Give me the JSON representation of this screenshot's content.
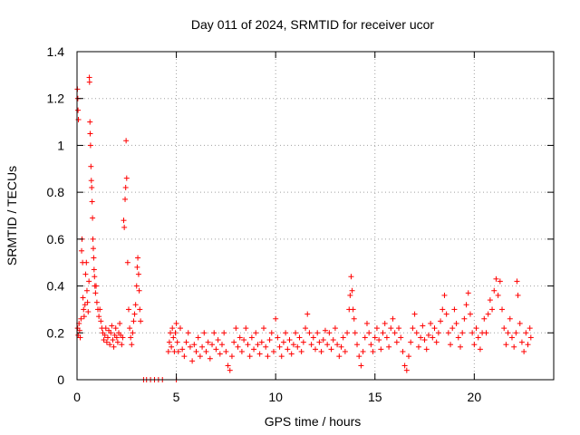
{
  "chart_data": {
    "type": "scatter",
    "title": "Day 011 of 2024, SRMTID for receiver ucor",
    "xlabel": "GPS time / hours",
    "ylabel": "SRMTID / TECUs",
    "xlim": [
      0,
      24
    ],
    "ylim": [
      0,
      1.4
    ],
    "xticks": [
      0,
      5,
      10,
      15,
      20
    ],
    "xtick_labels": [
      "0",
      "5",
      "10",
      "15",
      "20"
    ],
    "yticks": [
      0,
      0.2,
      0.4,
      0.6,
      0.8,
      1.0,
      1.2,
      1.4
    ],
    "ytick_labels": [
      "0",
      "0.2",
      "0.4",
      "0.6",
      "0.8",
      "1",
      "1.2",
      "1.4"
    ],
    "grid": true,
    "marker": "+",
    "color": "#ff0000",
    "series": [
      {
        "name": "SRMTID",
        "points": [
          [
            0.02,
            1.24
          ],
          [
            0.04,
            1.2
          ],
          [
            0.05,
            1.15
          ],
          [
            0.07,
            1.11
          ],
          [
            0.03,
            0.22
          ],
          [
            0.06,
            0.19
          ],
          [
            0.1,
            0.24
          ],
          [
            0.13,
            0.21
          ],
          [
            0.16,
            0.18
          ],
          [
            0.2,
            0.26
          ],
          [
            0.23,
            0.55
          ],
          [
            0.25,
            0.6
          ],
          [
            0.28,
            0.5
          ],
          [
            0.3,
            0.35
          ],
          [
            0.33,
            0.3
          ],
          [
            0.36,
            0.27
          ],
          [
            0.4,
            0.32
          ],
          [
            0.43,
            0.45
          ],
          [
            0.47,
            0.5
          ],
          [
            0.5,
            0.38
          ],
          [
            0.53,
            0.33
          ],
          [
            0.56,
            0.29
          ],
          [
            0.6,
            0.42
          ],
          [
            0.62,
            1.29
          ],
          [
            0.63,
            1.27
          ],
          [
            0.65,
            1.1
          ],
          [
            0.66,
            1.05
          ],
          [
            0.68,
            1.0
          ],
          [
            0.7,
            0.91
          ],
          [
            0.72,
            0.85
          ],
          [
            0.74,
            0.82
          ],
          [
            0.76,
            0.76
          ],
          [
            0.78,
            0.69
          ],
          [
            0.8,
            0.6
          ],
          [
            0.82,
            0.56
          ],
          [
            0.84,
            0.52
          ],
          [
            0.86,
            0.47
          ],
          [
            0.88,
            0.44
          ],
          [
            0.9,
            0.4
          ],
          [
            0.93,
            0.37
          ],
          [
            0.96,
            0.4
          ],
          [
            1.0,
            0.33
          ],
          [
            1.05,
            0.3
          ],
          [
            1.1,
            0.27
          ],
          [
            1.15,
            0.3
          ],
          [
            1.2,
            0.25
          ],
          [
            1.25,
            0.22
          ],
          [
            1.3,
            0.2
          ],
          [
            1.35,
            0.17
          ],
          [
            1.4,
            0.19
          ],
          [
            1.45,
            0.22
          ],
          [
            1.5,
            0.16
          ],
          [
            1.55,
            0.18
          ],
          [
            1.6,
            0.21
          ],
          [
            1.65,
            0.15
          ],
          [
            1.7,
            0.2
          ],
          [
            1.75,
            0.23
          ],
          [
            1.8,
            0.17
          ],
          [
            1.85,
            0.14
          ],
          [
            1.9,
            0.19
          ],
          [
            1.95,
            0.22
          ],
          [
            2.0,
            0.18
          ],
          [
            2.05,
            0.16
          ],
          [
            2.1,
            0.2
          ],
          [
            2.15,
            0.24
          ],
          [
            2.2,
            0.19
          ],
          [
            2.25,
            0.15
          ],
          [
            2.3,
            0.18
          ],
          [
            2.35,
            0.68
          ],
          [
            2.38,
            0.65
          ],
          [
            2.42,
            0.77
          ],
          [
            2.45,
            0.82
          ],
          [
            2.47,
            1.02
          ],
          [
            2.5,
            0.86
          ],
          [
            2.55,
            0.5
          ],
          [
            2.6,
            0.3
          ],
          [
            2.65,
            0.22
          ],
          [
            2.7,
            0.18
          ],
          [
            2.75,
            0.15
          ],
          [
            2.8,
            0.2
          ],
          [
            2.85,
            0.25
          ],
          [
            2.9,
            0.28
          ],
          [
            2.95,
            0.32
          ],
          [
            3.0,
            0.4
          ],
          [
            3.03,
            0.48
          ],
          [
            3.06,
            0.52
          ],
          [
            3.1,
            0.45
          ],
          [
            3.13,
            0.38
          ],
          [
            3.16,
            0.3
          ],
          [
            3.2,
            0.25
          ],
          [
            3.35,
            0.0
          ],
          [
            3.5,
            0.0
          ],
          [
            3.7,
            0.0
          ],
          [
            3.9,
            0.0
          ],
          [
            4.1,
            0.0
          ],
          [
            4.3,
            0.0
          ],
          [
            5.0,
            0.0
          ],
          [
            4.6,
            0.12
          ],
          [
            4.65,
            0.16
          ],
          [
            4.7,
            0.2
          ],
          [
            4.75,
            0.14
          ],
          [
            4.8,
            0.22
          ],
          [
            4.85,
            0.18
          ],
          [
            4.9,
            0.12
          ],
          [
            4.95,
            0.2
          ],
          [
            5.0,
            0.24
          ],
          [
            5.05,
            0.16
          ],
          [
            5.1,
            0.12
          ],
          [
            5.2,
            0.22
          ],
          [
            5.3,
            0.13
          ],
          [
            5.4,
            0.1
          ],
          [
            5.5,
            0.16
          ],
          [
            5.6,
            0.2
          ],
          [
            5.7,
            0.14
          ],
          [
            5.8,
            0.08
          ],
          [
            5.9,
            0.15
          ],
          [
            6.0,
            0.12
          ],
          [
            6.1,
            0.18
          ],
          [
            6.2,
            0.1
          ],
          [
            6.3,
            0.14
          ],
          [
            6.4,
            0.2
          ],
          [
            6.5,
            0.12
          ],
          [
            6.6,
            0.16
          ],
          [
            6.7,
            0.09
          ],
          [
            6.8,
            0.15
          ],
          [
            6.9,
            0.2
          ],
          [
            7.0,
            0.13
          ],
          [
            7.1,
            0.17
          ],
          [
            7.2,
            0.11
          ],
          [
            7.3,
            0.15
          ],
          [
            7.4,
            0.2
          ],
          [
            7.5,
            0.12
          ],
          [
            7.6,
            0.06
          ],
          [
            7.7,
            0.04
          ],
          [
            7.8,
            0.1
          ],
          [
            7.9,
            0.16
          ],
          [
            8.0,
            0.22
          ],
          [
            8.1,
            0.14
          ],
          [
            8.2,
            0.18
          ],
          [
            8.3,
            0.12
          ],
          [
            8.4,
            0.17
          ],
          [
            8.5,
            0.22
          ],
          [
            8.6,
            0.15
          ],
          [
            8.7,
            0.1
          ],
          [
            8.8,
            0.18
          ],
          [
            8.9,
            0.13
          ],
          [
            9.0,
            0.2
          ],
          [
            9.1,
            0.15
          ],
          [
            9.2,
            0.11
          ],
          [
            9.3,
            0.16
          ],
          [
            9.4,
            0.22
          ],
          [
            9.5,
            0.14
          ],
          [
            9.6,
            0.1
          ],
          [
            9.7,
            0.17
          ],
          [
            9.8,
            0.2
          ],
          [
            9.9,
            0.12
          ],
          [
            10.0,
            0.26
          ],
          [
            10.1,
            0.18
          ],
          [
            10.2,
            0.14
          ],
          [
            10.3,
            0.1
          ],
          [
            10.4,
            0.16
          ],
          [
            10.5,
            0.2
          ],
          [
            10.6,
            0.13
          ],
          [
            10.7,
            0.17
          ],
          [
            10.8,
            0.11
          ],
          [
            10.9,
            0.15
          ],
          [
            11.0,
            0.2
          ],
          [
            11.1,
            0.14
          ],
          [
            11.2,
            0.18
          ],
          [
            11.3,
            0.12
          ],
          [
            11.4,
            0.16
          ],
          [
            11.5,
            0.22
          ],
          [
            11.6,
            0.28
          ],
          [
            11.7,
            0.2
          ],
          [
            11.8,
            0.15
          ],
          [
            11.9,
            0.18
          ],
          [
            12.0,
            0.13
          ],
          [
            12.1,
            0.2
          ],
          [
            12.2,
            0.16
          ],
          [
            12.3,
            0.12
          ],
          [
            12.4,
            0.17
          ],
          [
            12.5,
            0.21
          ],
          [
            12.6,
            0.15
          ],
          [
            12.7,
            0.2
          ],
          [
            12.8,
            0.13
          ],
          [
            12.9,
            0.17
          ],
          [
            13.0,
            0.22
          ],
          [
            13.1,
            0.15
          ],
          [
            13.2,
            0.1
          ],
          [
            13.3,
            0.14
          ],
          [
            13.4,
            0.18
          ],
          [
            13.5,
            0.12
          ],
          [
            13.6,
            0.2
          ],
          [
            13.7,
            0.3
          ],
          [
            13.75,
            0.36
          ],
          [
            13.8,
            0.44
          ],
          [
            13.85,
            0.38
          ],
          [
            13.9,
            0.3
          ],
          [
            13.95,
            0.26
          ],
          [
            14.0,
            0.2
          ],
          [
            14.1,
            0.15
          ],
          [
            14.2,
            0.1
          ],
          [
            14.3,
            0.06
          ],
          [
            14.4,
            0.12
          ],
          [
            14.5,
            0.18
          ],
          [
            14.6,
            0.24
          ],
          [
            14.7,
            0.2
          ],
          [
            14.8,
            0.15
          ],
          [
            14.9,
            0.12
          ],
          [
            15.0,
            0.18
          ],
          [
            15.1,
            0.22
          ],
          [
            15.2,
            0.17
          ],
          [
            15.3,
            0.13
          ],
          [
            15.4,
            0.2
          ],
          [
            15.5,
            0.24
          ],
          [
            15.6,
            0.18
          ],
          [
            15.7,
            0.14
          ],
          [
            15.8,
            0.22
          ],
          [
            15.9,
            0.26
          ],
          [
            16.0,
            0.2
          ],
          [
            16.1,
            0.16
          ],
          [
            16.2,
            0.22
          ],
          [
            16.3,
            0.18
          ],
          [
            16.4,
            0.12
          ],
          [
            16.5,
            0.06
          ],
          [
            16.6,
            0.04
          ],
          [
            16.7,
            0.1
          ],
          [
            16.8,
            0.16
          ],
          [
            16.9,
            0.22
          ],
          [
            17.0,
            0.28
          ],
          [
            17.1,
            0.2
          ],
          [
            17.2,
            0.14
          ],
          [
            17.3,
            0.18
          ],
          [
            17.4,
            0.23
          ],
          [
            17.5,
            0.17
          ],
          [
            17.6,
            0.13
          ],
          [
            17.7,
            0.19
          ],
          [
            17.8,
            0.24
          ],
          [
            17.9,
            0.18
          ],
          [
            18.0,
            0.22
          ],
          [
            18.1,
            0.16
          ],
          [
            18.2,
            0.2
          ],
          [
            18.3,
            0.25
          ],
          [
            18.4,
            0.3
          ],
          [
            18.5,
            0.36
          ],
          [
            18.6,
            0.28
          ],
          [
            18.7,
            0.2
          ],
          [
            18.8,
            0.15
          ],
          [
            18.9,
            0.22
          ],
          [
            19.0,
            0.3
          ],
          [
            19.1,
            0.24
          ],
          [
            19.2,
            0.18
          ],
          [
            19.3,
            0.14
          ],
          [
            19.4,
            0.2
          ],
          [
            19.5,
            0.26
          ],
          [
            19.6,
            0.32
          ],
          [
            19.7,
            0.37
          ],
          [
            19.8,
            0.28
          ],
          [
            19.9,
            0.2
          ],
          [
            20.0,
            0.15
          ],
          [
            20.1,
            0.22
          ],
          [
            20.2,
            0.18
          ],
          [
            20.3,
            0.13
          ],
          [
            20.4,
            0.2
          ],
          [
            20.5,
            0.26
          ],
          [
            20.6,
            0.2
          ],
          [
            20.7,
            0.28
          ],
          [
            20.8,
            0.34
          ],
          [
            20.9,
            0.3
          ],
          [
            21.0,
            0.38
          ],
          [
            21.1,
            0.43
          ],
          [
            21.2,
            0.36
          ],
          [
            21.3,
            0.42
          ],
          [
            21.4,
            0.3
          ],
          [
            21.5,
            0.22
          ],
          [
            21.6,
            0.15
          ],
          [
            21.7,
            0.2
          ],
          [
            21.8,
            0.26
          ],
          [
            21.9,
            0.18
          ],
          [
            22.0,
            0.14
          ],
          [
            22.1,
            0.2
          ],
          [
            22.15,
            0.42
          ],
          [
            22.2,
            0.36
          ],
          [
            22.3,
            0.24
          ],
          [
            22.4,
            0.16
          ],
          [
            22.5,
            0.12
          ],
          [
            22.6,
            0.2
          ],
          [
            22.7,
            0.15
          ],
          [
            22.8,
            0.22
          ],
          [
            22.85,
            0.18
          ]
        ]
      }
    ]
  }
}
